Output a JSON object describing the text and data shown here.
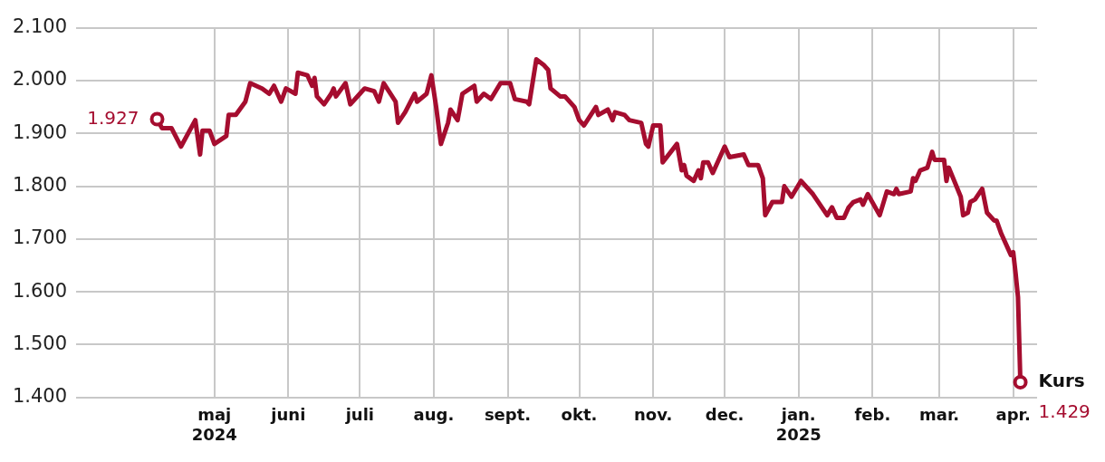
{
  "chart_data": {
    "type": "line",
    "x": [
      "2024-04-07",
      "2024-04-09",
      "2024-04-13",
      "2024-04-17",
      "2024-04-23",
      "2024-04-25",
      "2024-04-26",
      "2024-04-29",
      "2024-05-01",
      "2024-05-06",
      "2024-05-07",
      "2024-05-10",
      "2024-05-14",
      "2024-05-16",
      "2024-05-21",
      "2024-05-24",
      "2024-05-26",
      "2024-05-29",
      "2024-05-31",
      "2024-06-04",
      "2024-06-05",
      "2024-06-09",
      "2024-06-11",
      "2024-06-12",
      "2024-06-13",
      "2024-06-16",
      "2024-06-19",
      "2024-06-20",
      "2024-06-21",
      "2024-06-25",
      "2024-06-27",
      "2024-07-01",
      "2024-07-03",
      "2024-07-07",
      "2024-07-09",
      "2024-07-11",
      "2024-07-16",
      "2024-07-17",
      "2024-07-20",
      "2024-07-24",
      "2024-07-25",
      "2024-07-29",
      "2024-07-31",
      "2024-08-02",
      "2024-08-04",
      "2024-08-07",
      "2024-08-08",
      "2024-08-11",
      "2024-08-13",
      "2024-08-18",
      "2024-08-19",
      "2024-08-22",
      "2024-08-25",
      "2024-08-29",
      "2024-09-02",
      "2024-09-04",
      "2024-09-09",
      "2024-09-10",
      "2024-09-13",
      "2024-09-16",
      "2024-09-18",
      "2024-09-19",
      "2024-09-23",
      "2024-09-25",
      "2024-09-29",
      "2024-10-01",
      "2024-10-03",
      "2024-10-08",
      "2024-10-09",
      "2024-10-13",
      "2024-10-15",
      "2024-10-16",
      "2024-10-20",
      "2024-10-22",
      "2024-10-27",
      "2024-10-29",
      "2024-10-30",
      "2024-11-01",
      "2024-11-04",
      "2024-11-05",
      "2024-11-11",
      "2024-11-13",
      "2024-11-14",
      "2024-11-15",
      "2024-11-18",
      "2024-11-20",
      "2024-11-21",
      "2024-11-22",
      "2024-11-24",
      "2024-11-26",
      "2024-11-29",
      "2024-12-01",
      "2024-12-03",
      "2024-12-09",
      "2024-12-11",
      "2024-12-15",
      "2024-12-17",
      "2024-12-18",
      "2024-12-21",
      "2024-12-25",
      "2024-12-26",
      "2024-12-29",
      "2025-01-02",
      "2025-01-07",
      "2025-01-13",
      "2025-01-15",
      "2025-01-17",
      "2025-01-20",
      "2025-01-22",
      "2025-01-24",
      "2025-01-27",
      "2025-01-28",
      "2025-01-30",
      "2025-02-04",
      "2025-02-07",
      "2025-02-10",
      "2025-02-11",
      "2025-02-12",
      "2025-02-17",
      "2025-02-18",
      "2025-02-19",
      "2025-02-21",
      "2025-02-24",
      "2025-02-26",
      "2025-02-27",
      "2025-03-03",
      "2025-03-04",
      "2025-03-05",
      "2025-03-10",
      "2025-03-11",
      "2025-03-13",
      "2025-03-14",
      "2025-03-16",
      "2025-03-19",
      "2025-03-21",
      "2025-03-24",
      "2025-03-25",
      "2025-03-27",
      "2025-03-31",
      "2025-04-01",
      "2025-04-02",
      "2025-04-03",
      "2025-04-04"
    ],
    "series": [
      {
        "name": "Kurs",
        "color": "#a50d2f",
        "values": [
          1927,
          1910,
          1910,
          1875,
          1925,
          1860,
          1905,
          1905,
          1880,
          1895,
          1935,
          1935,
          1960,
          1995,
          1985,
          1975,
          1990,
          1960,
          1985,
          1975,
          2015,
          2010,
          1990,
          2005,
          1970,
          1955,
          1975,
          1985,
          1970,
          1995,
          1955,
          1975,
          1985,
          1980,
          1960,
          1995,
          1960,
          1920,
          1940,
          1975,
          1960,
          1975,
          2010,
          1950,
          1880,
          1920,
          1945,
          1925,
          1975,
          1990,
          1960,
          1975,
          1965,
          1995,
          1995,
          1965,
          1960,
          1955,
          2040,
          2030,
          2020,
          1985,
          1970,
          1970,
          1950,
          1925,
          1915,
          1950,
          1935,
          1945,
          1925,
          1940,
          1935,
          1925,
          1920,
          1880,
          1875,
          1915,
          1915,
          1845,
          1880,
          1830,
          1840,
          1820,
          1810,
          1830,
          1815,
          1845,
          1845,
          1825,
          1855,
          1875,
          1855,
          1860,
          1840,
          1840,
          1815,
          1745,
          1770,
          1770,
          1800,
          1780,
          1810,
          1785,
          1745,
          1760,
          1740,
          1740,
          1760,
          1770,
          1775,
          1765,
          1785,
          1745,
          1790,
          1785,
          1795,
          1785,
          1790,
          1815,
          1810,
          1830,
          1835,
          1865,
          1850,
          1850,
          1810,
          1835,
          1780,
          1745,
          1750,
          1770,
          1775,
          1795,
          1750,
          1735,
          1735,
          1710,
          1670,
          1675,
          1635,
          1590,
          1429
        ],
        "value_labels": [
          "1.927",
          null,
          null,
          null,
          null,
          null,
          null,
          null,
          null,
          null,
          null,
          null,
          null,
          null,
          null,
          null,
          null,
          null,
          null,
          null,
          null,
          null,
          null,
          null,
          null,
          null,
          null,
          null,
          null,
          null,
          null,
          null,
          null,
          null,
          null,
          null,
          null,
          null,
          null,
          null,
          null,
          null,
          null,
          null,
          null,
          null,
          null,
          null,
          null,
          null,
          null,
          null,
          null,
          null,
          null,
          null,
          null,
          null,
          null,
          null,
          null,
          null,
          null,
          null,
          null,
          null,
          null,
          null,
          null,
          null,
          null,
          null,
          null,
          null,
          null,
          null,
          null,
          null,
          null,
          null,
          null,
          null,
          null,
          null,
          null,
          null,
          null,
          null,
          null,
          null,
          null,
          null,
          null,
          null,
          null,
          null,
          null,
          null,
          null,
          null,
          null,
          null,
          null,
          null,
          null,
          null,
          null,
          null,
          null,
          null,
          null,
          null,
          null,
          null,
          null,
          null,
          null,
          null,
          null,
          null,
          null,
          null,
          null,
          null,
          null,
          null,
          null,
          null,
          null,
          null,
          null,
          null,
          null,
          null,
          null,
          null,
          null,
          null,
          null,
          null,
          null,
          null,
          "1.429"
        ]
      }
    ],
    "xlim": [
      "2024-03-04",
      "2025-04-11"
    ],
    "xticks": [
      {
        "value": "2024-05-01",
        "label": "maj\n2024"
      },
      {
        "value": "2024-06-01",
        "label": "juni"
      },
      {
        "value": "2024-07-01",
        "label": "juli"
      },
      {
        "value": "2024-08-01",
        "label": "aug."
      },
      {
        "value": "2024-09-01",
        "label": "sept."
      },
      {
        "value": "2024-10-01",
        "label": "okt."
      },
      {
        "value": "2024-11-01",
        "label": "nov."
      },
      {
        "value": "2024-12-01",
        "label": "dec."
      },
      {
        "value": "2025-01-01",
        "label": "jan.\n2025"
      },
      {
        "value": "2025-02-01",
        "label": "feb."
      },
      {
        "value": "2025-03-01",
        "label": "mar."
      },
      {
        "value": "2025-04-01",
        "label": "apr."
      }
    ],
    "ylim": [
      1400,
      2100
    ],
    "yticks": [
      {
        "value": 1400,
        "label": "1.400"
      },
      {
        "value": 1500,
        "label": "1.500"
      },
      {
        "value": 1600,
        "label": "1.600"
      },
      {
        "value": 1700,
        "label": "1.700"
      },
      {
        "value": 1800,
        "label": "1.800"
      },
      {
        "value": 1900,
        "label": "1.900"
      },
      {
        "value": 2000,
        "label": "2.000"
      },
      {
        "value": 2100,
        "label": "2.100"
      }
    ],
    "grid": true,
    "legend": false,
    "line_style": "solid"
  }
}
